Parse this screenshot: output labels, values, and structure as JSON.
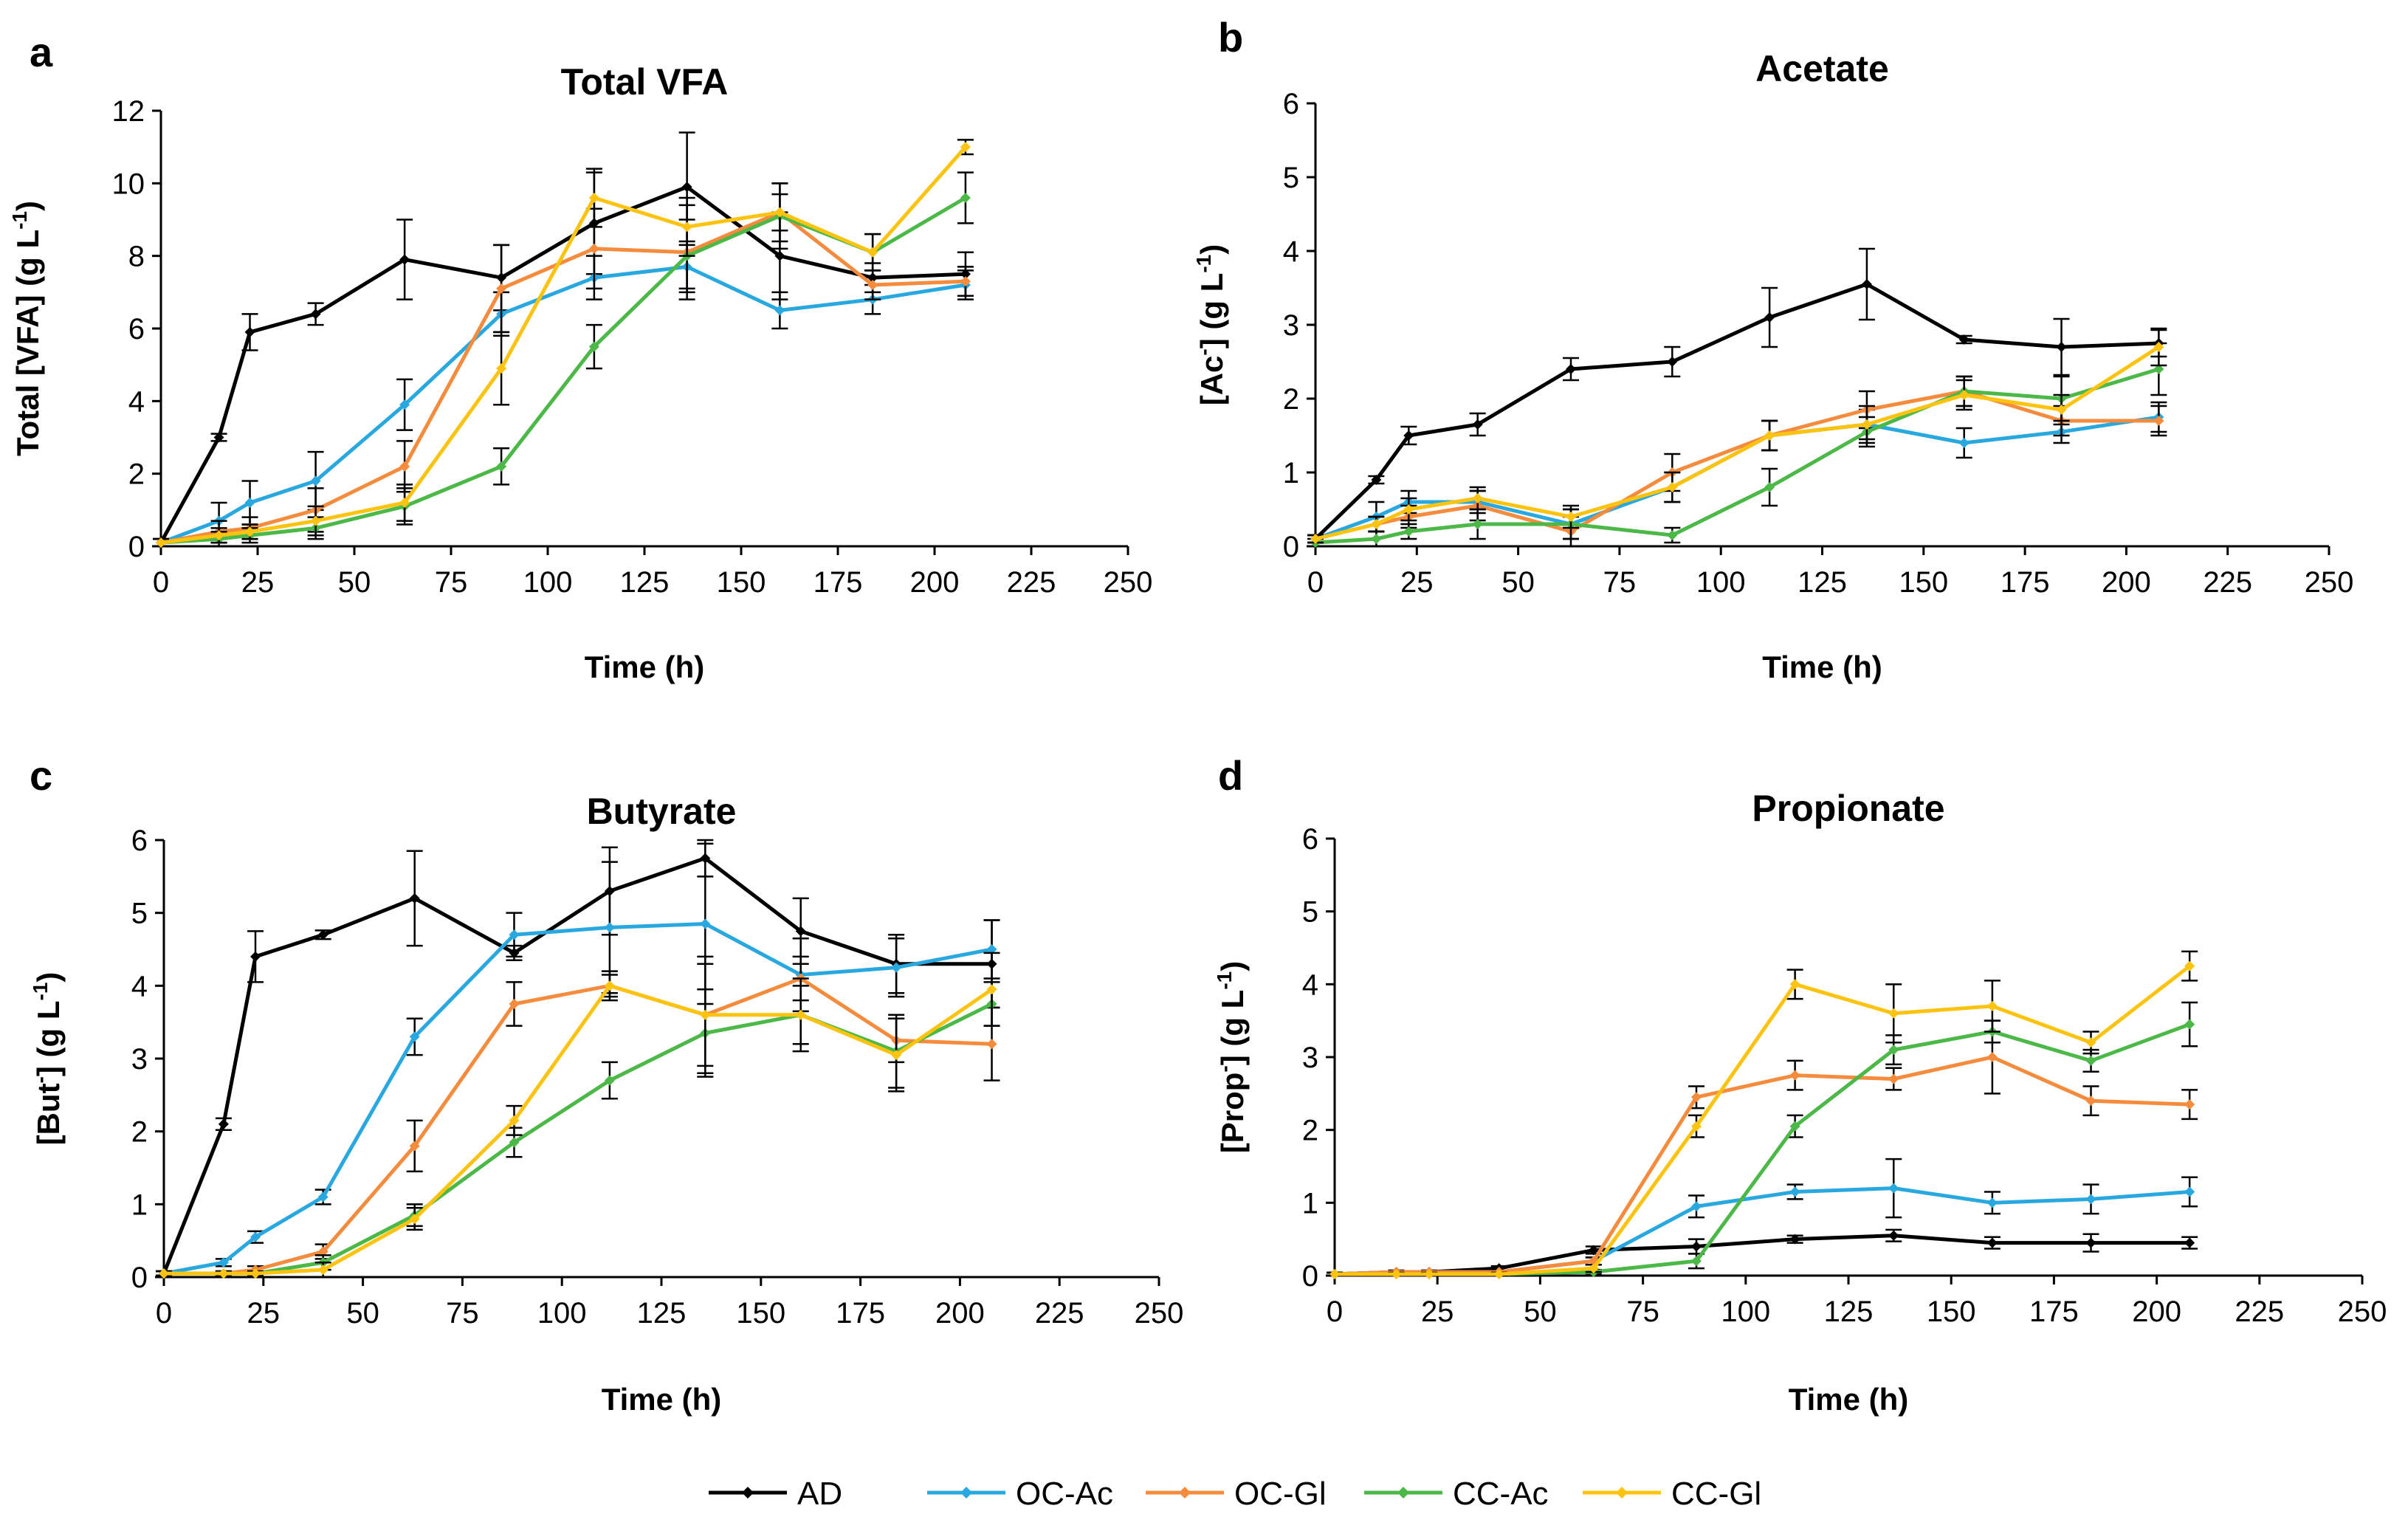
{
  "chart_data": [
    {
      "panel": "a",
      "type": "line",
      "title": "Total VFA",
      "xlabel": "Time (h)",
      "ylabel": "Total [VFA] (g L",
      "ylabel_sup": "-1",
      "ylabel_tail": ")",
      "xlim": [
        0,
        250
      ],
      "xticks": [
        0,
        25,
        50,
        75,
        100,
        125,
        150,
        175,
        200,
        225,
        250
      ],
      "ylim": [
        0,
        12
      ],
      "yticks": [
        0,
        2,
        4,
        6,
        8,
        10,
        12
      ],
      "series": [
        {
          "name": "AD",
          "x": [
            0,
            15,
            23,
            40,
            63,
            88,
            112,
            136,
            160,
            184,
            208
          ],
          "y": [
            0.1,
            3.0,
            5.9,
            6.4,
            7.9,
            7.4,
            8.9,
            9.9,
            8.0,
            7.4,
            7.5
          ],
          "err": [
            0.1,
            0.1,
            0.5,
            0.3,
            1.1,
            0.9,
            1.4,
            1.5,
            1.2,
            0.4,
            0.6
          ]
        },
        {
          "name": "OC-Ac",
          "x": [
            0,
            15,
            23,
            40,
            63,
            88,
            112,
            136,
            160,
            184,
            208
          ],
          "y": [
            0.1,
            0.7,
            1.2,
            1.8,
            3.9,
            6.4,
            7.4,
            7.7,
            6.5,
            6.8,
            7.2
          ],
          "err": [
            0.1,
            0.5,
            0.6,
            0.8,
            0.7,
            0.6,
            0.6,
            0.6,
            0.5,
            0.4,
            0.4
          ]
        },
        {
          "name": "OC-Gl",
          "x": [
            0,
            15,
            23,
            40,
            63,
            88,
            112,
            136,
            160,
            184,
            208
          ],
          "y": [
            0.1,
            0.4,
            0.5,
            1.0,
            2.2,
            7.1,
            8.2,
            8.1,
            9.2,
            7.2,
            7.3
          ],
          "err": [
            0.1,
            0.3,
            0.3,
            0.6,
            0.7,
            1.2,
            1.1,
            1.3,
            0.8,
            0.4,
            0.4
          ]
        },
        {
          "name": "CC-Ac",
          "x": [
            0,
            15,
            23,
            40,
            63,
            88,
            112,
            136,
            160,
            184,
            208
          ],
          "y": [
            0.1,
            0.2,
            0.3,
            0.5,
            1.1,
            2.2,
            5.5,
            8.0,
            9.1,
            8.1,
            9.6
          ],
          "err": [
            0.1,
            0.2,
            0.2,
            0.3,
            0.5,
            0.5,
            0.6,
            1.0,
            0.9,
            0.5,
            0.7
          ]
        },
        {
          "name": "CC-Gl",
          "x": [
            0,
            15,
            23,
            40,
            63,
            88,
            112,
            136,
            160,
            184,
            208
          ],
          "y": [
            0.1,
            0.3,
            0.4,
            0.7,
            1.2,
            4.9,
            9.6,
            8.8,
            9.2,
            8.1,
            11.0
          ],
          "err": [
            0.1,
            0.2,
            0.2,
            0.4,
            0.5,
            1.0,
            0.8,
            0.8,
            0.5,
            0.5,
            0.2
          ]
        }
      ]
    },
    {
      "panel": "b",
      "type": "line",
      "title": "Acetate",
      "xlabel": "Time (h)",
      "ylabel": "[Ac",
      "ylabel_sup": "-",
      "ylabel_tail": "] (g L",
      "ylabel_sup2": "-1",
      "ylabel_tail2": ")",
      "xlim": [
        0,
        250
      ],
      "xticks": [
        0,
        25,
        50,
        75,
        100,
        125,
        150,
        175,
        200,
        225,
        250
      ],
      "ylim": [
        0,
        6
      ],
      "yticks": [
        0,
        1,
        2,
        3,
        4,
        5,
        6
      ],
      "series": [
        {
          "name": "AD",
          "x": [
            0,
            15,
            23,
            40,
            63,
            88,
            112,
            136,
            160,
            184,
            208
          ],
          "y": [
            0.1,
            0.9,
            1.5,
            1.65,
            2.4,
            2.5,
            3.1,
            3.55,
            2.8,
            2.7,
            2.75
          ],
          "err": [
            0.05,
            0.05,
            0.12,
            0.15,
            0.15,
            0.2,
            0.4,
            0.48,
            0.05,
            0.38,
            0.18
          ]
        },
        {
          "name": "OC-Ac",
          "x": [
            0,
            15,
            23,
            40,
            63,
            88,
            112,
            136,
            160,
            184,
            208
          ],
          "y": [
            0.1,
            0.4,
            0.6,
            0.6,
            0.3,
            0.8,
            1.5,
            1.65,
            1.4,
            1.55,
            1.75
          ],
          "err": [
            0.05,
            0.2,
            0.15,
            0.15,
            0.2,
            0.2,
            0.2,
            0.2,
            0.2,
            0.15,
            0.2
          ]
        },
        {
          "name": "OC-Gl",
          "x": [
            0,
            15,
            23,
            40,
            63,
            88,
            112,
            136,
            160,
            184,
            208
          ],
          "y": [
            0.1,
            0.3,
            0.4,
            0.55,
            0.2,
            1.0,
            1.5,
            1.85,
            2.1,
            1.7,
            1.7
          ],
          "err": [
            0.05,
            0.1,
            0.15,
            0.2,
            0.2,
            0.25,
            0.2,
            0.25,
            0.2,
            0.2,
            0.2
          ]
        },
        {
          "name": "CC-Ac",
          "x": [
            0,
            15,
            23,
            40,
            63,
            88,
            112,
            136,
            160,
            184,
            208
          ],
          "y": [
            0.05,
            0.1,
            0.2,
            0.3,
            0.3,
            0.15,
            0.8,
            1.55,
            2.1,
            2.0,
            2.4
          ],
          "err": [
            0.05,
            0.1,
            0.1,
            0.2,
            0.2,
            0.1,
            0.25,
            0.2,
            0.2,
            0.3,
            0.35
          ]
        },
        {
          "name": "CC-Gl",
          "x": [
            0,
            15,
            23,
            40,
            63,
            88,
            112,
            136,
            160,
            184,
            208
          ],
          "y": [
            0.1,
            0.3,
            0.5,
            0.65,
            0.4,
            0.8,
            1.5,
            1.65,
            2.05,
            1.85,
            2.7
          ],
          "err": [
            0.05,
            0.1,
            0.15,
            0.15,
            0.15,
            0.2,
            0.2,
            0.25,
            0.2,
            0.2,
            0.25
          ]
        }
      ]
    },
    {
      "panel": "c",
      "type": "line",
      "title": "Butyrate",
      "xlabel": "Time (h)",
      "ylabel": "[But",
      "ylabel_sup": "-",
      "ylabel_tail": "] (g L",
      "ylabel_sup2": "-1",
      "ylabel_tail2": ")",
      "xlim": [
        0,
        250
      ],
      "xticks": [
        0,
        25,
        50,
        75,
        100,
        125,
        150,
        175,
        200,
        225,
        250
      ],
      "ylim": [
        0,
        6
      ],
      "yticks": [
        0,
        1,
        2,
        3,
        4,
        5,
        6
      ],
      "series": [
        {
          "name": "AD",
          "x": [
            0,
            15,
            23,
            40,
            63,
            88,
            112,
            136,
            160,
            184,
            208
          ],
          "y": [
            0.05,
            2.1,
            4.4,
            4.7,
            5.2,
            4.45,
            5.3,
            5.75,
            4.75,
            4.3,
            4.3
          ],
          "err": [
            0.03,
            0.08,
            0.35,
            0.06,
            0.65,
            0.1,
            0.6,
            0.25,
            0.45,
            0.4,
            0.6
          ]
        },
        {
          "name": "OC-Ac",
          "x": [
            0,
            15,
            23,
            40,
            63,
            88,
            112,
            136,
            160,
            184,
            208
          ],
          "y": [
            0.05,
            0.2,
            0.55,
            1.1,
            3.3,
            4.7,
            4.8,
            4.85,
            4.15,
            4.25,
            4.5
          ],
          "err": [
            0.03,
            0.05,
            0.08,
            0.1,
            0.25,
            0.3,
            0.9,
            1.1,
            0.5,
            0.4,
            0.4
          ]
        },
        {
          "name": "OC-Gl",
          "x": [
            0,
            15,
            23,
            40,
            63,
            88,
            112,
            136,
            160,
            184,
            208
          ],
          "y": [
            0.05,
            0.05,
            0.1,
            0.35,
            1.8,
            3.75,
            4.0,
            3.6,
            4.1,
            3.25,
            3.2
          ],
          "err": [
            0.03,
            0.03,
            0.05,
            0.1,
            0.35,
            0.3,
            0.2,
            0.7,
            0.3,
            0.3,
            0.5
          ]
        },
        {
          "name": "CC-Ac",
          "x": [
            0,
            15,
            23,
            40,
            63,
            88,
            112,
            136,
            160,
            184,
            208
          ],
          "y": [
            0.05,
            0.05,
            0.05,
            0.2,
            0.85,
            1.85,
            2.7,
            3.35,
            3.6,
            3.1,
            3.75
          ],
          "err": [
            0.03,
            0.03,
            0.03,
            0.1,
            0.15,
            0.2,
            0.25,
            0.6,
            0.4,
            0.5,
            0.3
          ]
        },
        {
          "name": "CC-Gl",
          "x": [
            0,
            15,
            23,
            40,
            63,
            88,
            112,
            136,
            160,
            184,
            208
          ],
          "y": [
            0.05,
            0.05,
            0.05,
            0.1,
            0.8,
            2.15,
            4.0,
            3.6,
            3.6,
            3.05,
            3.95
          ],
          "err": [
            0.03,
            0.03,
            0.03,
            0.1,
            0.15,
            0.2,
            0.15,
            0.8,
            0.5,
            0.5,
            0.5
          ]
        }
      ]
    },
    {
      "panel": "d",
      "type": "line",
      "title": "Propionate",
      "xlabel": "Time (h)",
      "ylabel": "[Prop",
      "ylabel_sup": "-",
      "ylabel_tail": "] (g L",
      "ylabel_sup2": "-1",
      "ylabel_tail2": ")",
      "xlim": [
        0,
        250
      ],
      "xticks": [
        0,
        25,
        50,
        75,
        100,
        125,
        150,
        175,
        200,
        225,
        250
      ],
      "ylim": [
        0,
        6
      ],
      "yticks": [
        0,
        1,
        2,
        3,
        4,
        5,
        6
      ],
      "series": [
        {
          "name": "AD",
          "x": [
            0,
            15,
            23,
            40,
            63,
            88,
            112,
            136,
            160,
            184,
            208
          ],
          "y": [
            0.02,
            0.05,
            0.05,
            0.1,
            0.35,
            0.4,
            0.5,
            0.55,
            0.45,
            0.45,
            0.45
          ],
          "err": [
            0.02,
            0.02,
            0.02,
            0.03,
            0.05,
            0.1,
            0.05,
            0.08,
            0.08,
            0.12,
            0.08
          ]
        },
        {
          "name": "OC-Ac",
          "x": [
            0,
            15,
            23,
            40,
            63,
            88,
            112,
            136,
            160,
            184,
            208
          ],
          "y": [
            0.02,
            0.05,
            0.05,
            0.05,
            0.2,
            0.95,
            1.15,
            1.2,
            1.0,
            1.05,
            1.15
          ],
          "err": [
            0.02,
            0.02,
            0.02,
            0.02,
            0.05,
            0.15,
            0.1,
            0.4,
            0.15,
            0.2,
            0.2
          ]
        },
        {
          "name": "OC-Gl",
          "x": [
            0,
            15,
            23,
            40,
            63,
            88,
            112,
            136,
            160,
            184,
            208
          ],
          "y": [
            0.02,
            0.05,
            0.05,
            0.05,
            0.2,
            2.45,
            2.75,
            2.7,
            3.0,
            2.4,
            2.35
          ],
          "err": [
            0.02,
            0.02,
            0.02,
            0.02,
            0.05,
            0.15,
            0.2,
            0.15,
            0.5,
            0.2,
            0.2
          ]
        },
        {
          "name": "CC-Ac",
          "x": [
            0,
            15,
            23,
            40,
            63,
            88,
            112,
            136,
            160,
            184,
            208
          ],
          "y": [
            0.02,
            0.02,
            0.02,
            0.02,
            0.05,
            0.2,
            2.05,
            3.1,
            3.35,
            2.95,
            3.45
          ],
          "err": [
            0.02,
            0.02,
            0.02,
            0.02,
            0.03,
            0.1,
            0.15,
            0.2,
            0.15,
            0.15,
            0.3
          ]
        },
        {
          "name": "CC-Gl",
          "x": [
            0,
            15,
            23,
            40,
            63,
            88,
            112,
            136,
            160,
            184,
            208
          ],
          "y": [
            0.02,
            0.02,
            0.02,
            0.02,
            0.1,
            2.05,
            4.0,
            3.6,
            3.7,
            3.2,
            4.25
          ],
          "err": [
            0.02,
            0.02,
            0.02,
            0.02,
            0.05,
            0.15,
            0.2,
            0.4,
            0.35,
            0.15,
            0.2
          ]
        }
      ]
    }
  ],
  "legend": {
    "items": [
      {
        "name": "AD",
        "color": "#000000"
      },
      {
        "name": "OC-Ac",
        "color": "#29A8E0"
      },
      {
        "name": "OC-Gl",
        "color": "#F58B3C"
      },
      {
        "name": "CC-Ac",
        "color": "#4CB848"
      },
      {
        "name": "CC-Gl",
        "color": "#FCC310"
      }
    ]
  },
  "colors": {
    "AD": "#000000",
    "OC-Ac": "#29A8E0",
    "OC-Gl": "#F58B3C",
    "CC-Ac": "#4CB848",
    "CC-Gl": "#FCC310"
  }
}
